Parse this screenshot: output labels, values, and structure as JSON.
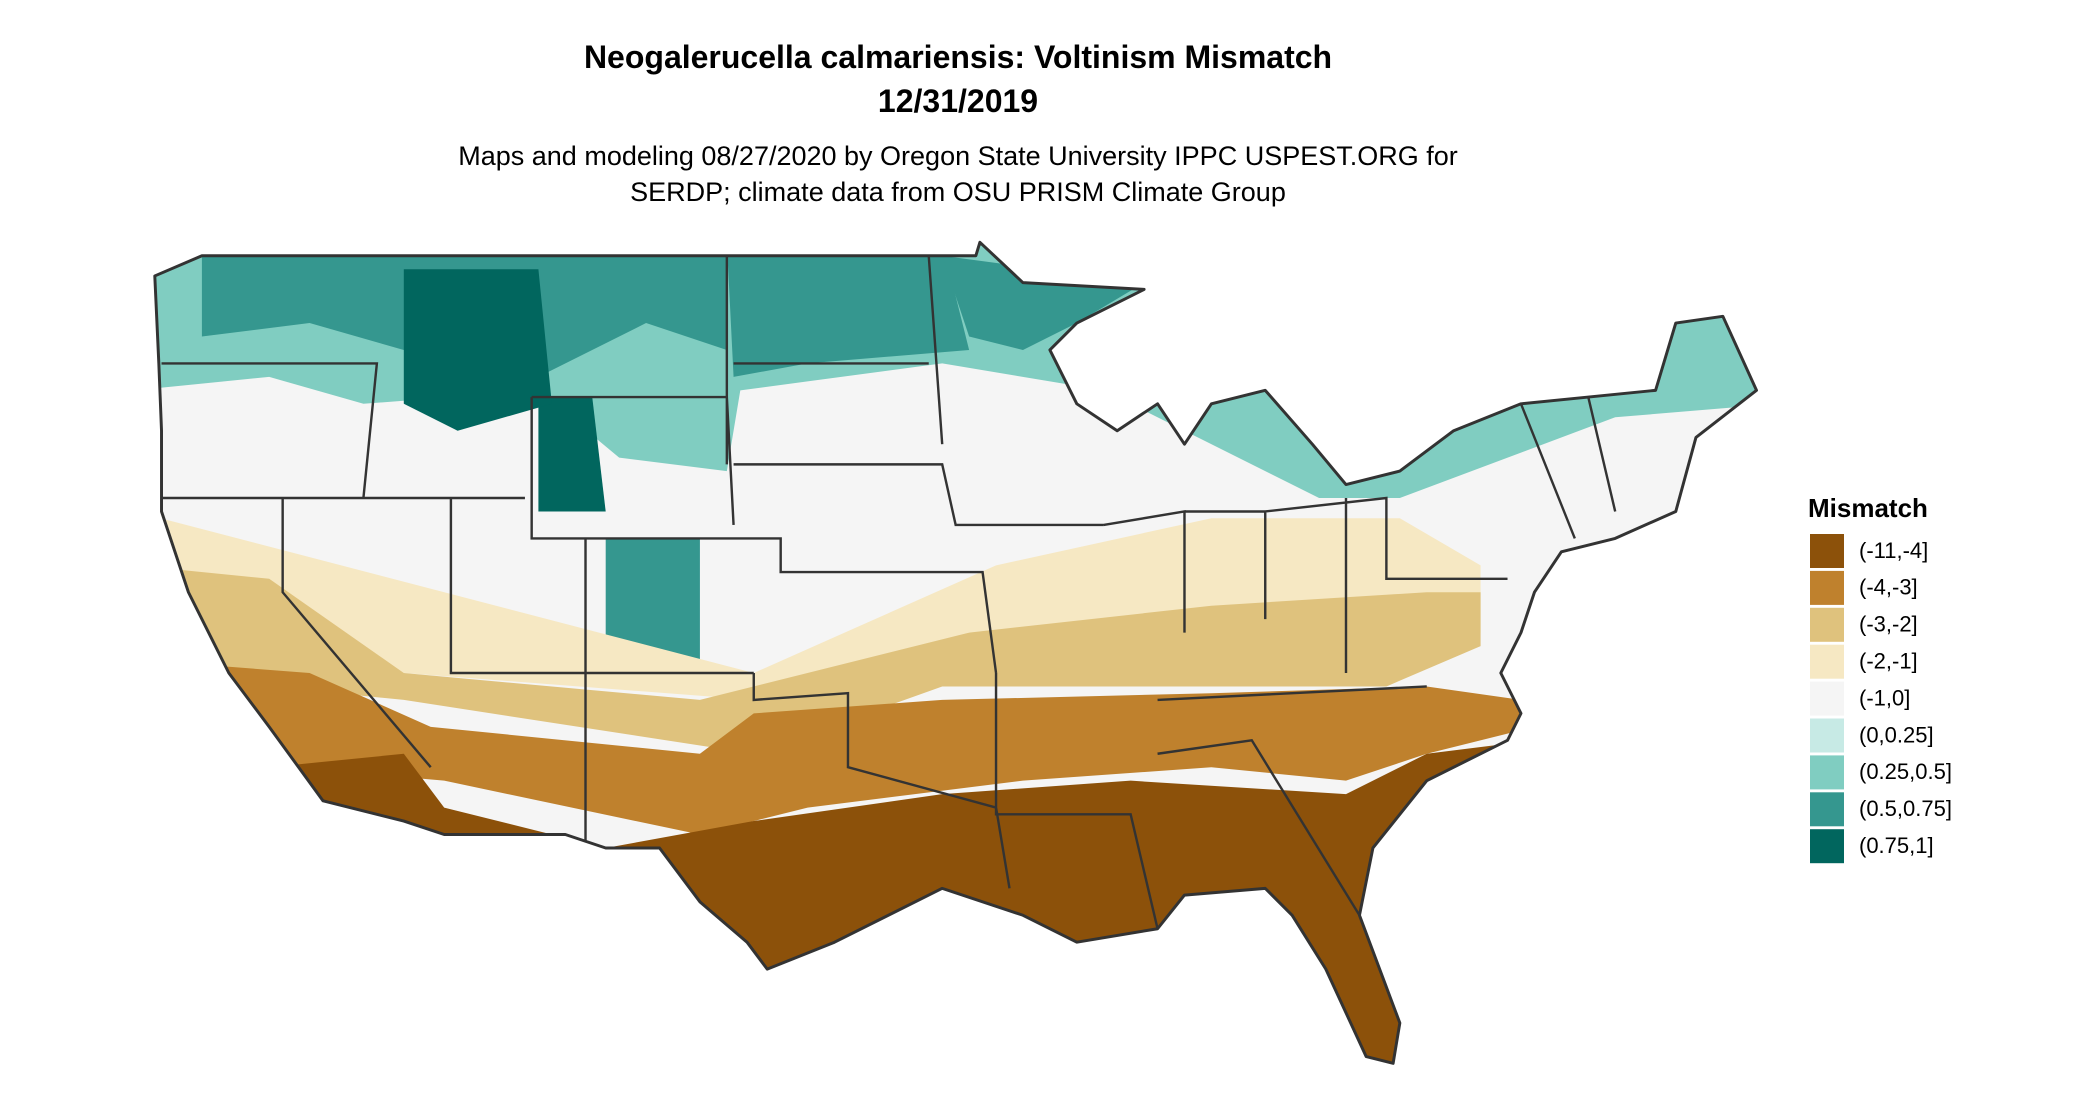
{
  "title": [
    "Neogalerucella calmariensis: Voltinism Mismatch",
    "12/31/2019"
  ],
  "subtitle": [
    "Maps and modeling 08/27/2020 by Oregon State University IPPC USPEST.ORG for",
    "SERDP; climate data from OSU PRISM Climate Group"
  ],
  "legend": {
    "title": "Mismatch",
    "items": [
      {
        "label": "(-11,-4]",
        "color": "#8c510a"
      },
      {
        "label": "(-4,-3]",
        "color": "#bf812d"
      },
      {
        "label": "(-3,-2]",
        "color": "#dfc27d"
      },
      {
        "label": "(-2,-1]",
        "color": "#f6e8c3"
      },
      {
        "label": "(-1,0]",
        "color": "#f5f5f5"
      },
      {
        "label": "(0,0.25]",
        "color": "#c7eae5"
      },
      {
        "label": "(0.25,0.5]",
        "color": "#80cdc1"
      },
      {
        "label": "(0.5,0.75]",
        "color": "#35978f"
      },
      {
        "label": "(0.75,1]",
        "color": "#01665e"
      }
    ]
  }
}
